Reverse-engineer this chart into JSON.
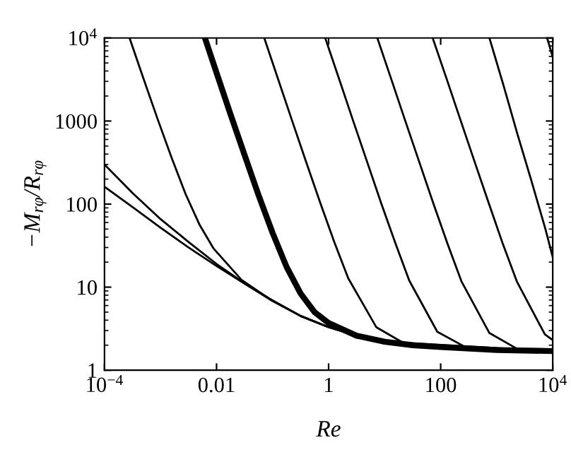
{
  "chart_data": {
    "type": "line",
    "xlabel": "Re",
    "ylabel": "−M$_{rφ}$/R$_{rφ}$",
    "log": "xy",
    "grid": false,
    "legend": false,
    "marker": "none",
    "line_style": "solid",
    "xlim": [
      0.0001,
      10000
    ],
    "ylim": [
      1,
      10000
    ],
    "xticks": [
      {
        "value": 0.0001,
        "label": "10$^{−4}$"
      },
      0.01,
      1,
      100,
      {
        "value": 10000,
        "label": "10$^{4}$"
      }
    ],
    "yticks": [
      1,
      10,
      100,
      1000,
      {
        "value": 10000,
        "label": "10$^{4}$"
      }
    ],
    "series": [
      {
        "color": "#000000",
        "x": [
          0.0001,
          0.000316,
          0.001,
          0.00316,
          0.01,
          0.0316,
          0.1,
          0.316,
          1,
          3.16,
          10,
          31.6,
          100,
          1000,
          10000
        ],
        "values": [
          162,
          92,
          52,
          30,
          18,
          11,
          6.8,
          4.5,
          3.3,
          2.6,
          2.2,
          2.0,
          1.9,
          1.75,
          1.7
        ]
      },
      {
        "color": "#000000",
        "x": [
          0.0001,
          0.000316,
          0.001,
          0.00316,
          0.01,
          0.0316,
          0.1,
          0.316,
          1,
          3.16,
          10,
          31.6,
          100,
          1000,
          10000
        ],
        "values": [
          300,
          136,
          66,
          35,
          19,
          11.1,
          6.9,
          4.5,
          3.3,
          2.6,
          2.2,
          2.0,
          1.9,
          1.75,
          1.7
        ]
      },
      {
        "color": "#000000",
        "x": [
          0.0062,
          0.01,
          0.0178,
          0.0316,
          0.0562,
          0.1,
          0.178,
          0.316,
          0.562,
          1,
          3.16,
          10,
          31.6,
          100,
          1000,
          10000
        ],
        "values": [
          10000,
          3800,
          1200,
          390,
          128,
          45,
          17.5,
          8.4,
          5.0,
          3.7,
          2.6,
          2.2,
          2.0,
          1.9,
          1.75,
          1.7
        ]
      },
      {
        "color": "#000000",
        "x": [
          0.00028,
          0.0005,
          0.00089,
          0.00158,
          0.0028,
          0.005,
          0.0089,
          0.028,
          0.089,
          0.316,
          1,
          10,
          10000
        ],
        "values": [
          10000,
          3200,
          1050,
          360,
          132,
          56,
          29,
          12.2,
          7.2,
          4.5,
          3.3,
          2.2,
          1.7
        ]
      },
      {
        "color": "#000000",
        "x": [
          0.071,
          0.126,
          0.224,
          0.398,
          0.708,
          1.26,
          2.24,
          7.08,
          22.4,
          100,
          10000
        ],
        "values": [
          10000,
          3170,
          1000,
          320,
          104,
          35,
          12.8,
          3.3,
          2.1,
          1.86,
          1.7
        ]
      },
      {
        "color": "#000000",
        "x": [
          0.87,
          1.55,
          2.75,
          4.9,
          8.7,
          15.5,
          27.5,
          87,
          275,
          10000
        ],
        "values": [
          10000,
          3170,
          1000,
          318,
          102,
          34,
          12,
          2.9,
          1.9,
          1.7
        ]
      },
      {
        "color": "#000000",
        "x": [
          7.4,
          13.2,
          23.4,
          41.7,
          74,
          132,
          234,
          741,
          2340,
          10000
        ],
        "values": [
          10000,
          3160,
          1000,
          318,
          102,
          33.5,
          11.8,
          2.8,
          1.8,
          1.7
        ]
      },
      {
        "color": "#000000",
        "x": [
          72,
          129,
          229,
          407,
          724,
          1290,
          2290,
          7240,
          10000
        ],
        "values": [
          10000,
          3160,
          1000,
          318,
          102,
          33,
          11.7,
          2.7,
          2.3
        ]
      },
      {
        "color": "#000000",
        "x": [
          741,
          1320,
          2340,
          4170,
          7410,
          10000
        ],
        "values": [
          10000,
          2700,
          700,
          190,
          50,
          23
        ]
      },
      {
        "color": "#000000",
        "x": [
          7940,
          10000
        ],
        "values": [
          10000,
          5900
        ]
      }
    ]
  }
}
